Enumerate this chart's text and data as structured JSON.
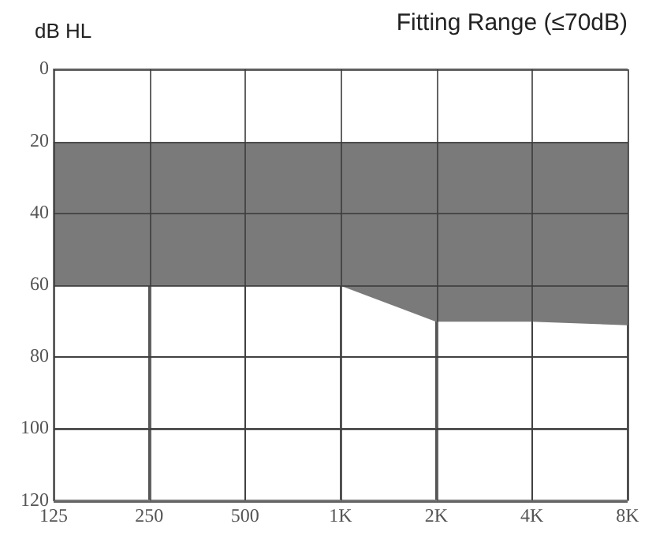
{
  "chart_data": {
    "type": "area",
    "title": "Fitting Range (≤70dB)",
    "ylabel": "dB HL",
    "categories": [
      "125",
      "250",
      "500",
      "1K",
      "2K",
      "4K",
      "8K"
    ],
    "stacked": true,
    "series": [
      {
        "color": "#ffffff",
        "values": [
          20,
          20,
          20,
          20,
          20,
          20,
          20
        ]
      },
      {
        "color": "#7a7a7a",
        "values": [
          40,
          40,
          40,
          40,
          50,
          50,
          51
        ]
      }
    ],
    "ylim": [
      120,
      0
    ],
    "yticks": [
      0,
      20,
      40,
      60,
      80,
      100,
      120
    ],
    "grid": true,
    "legend": false
  }
}
